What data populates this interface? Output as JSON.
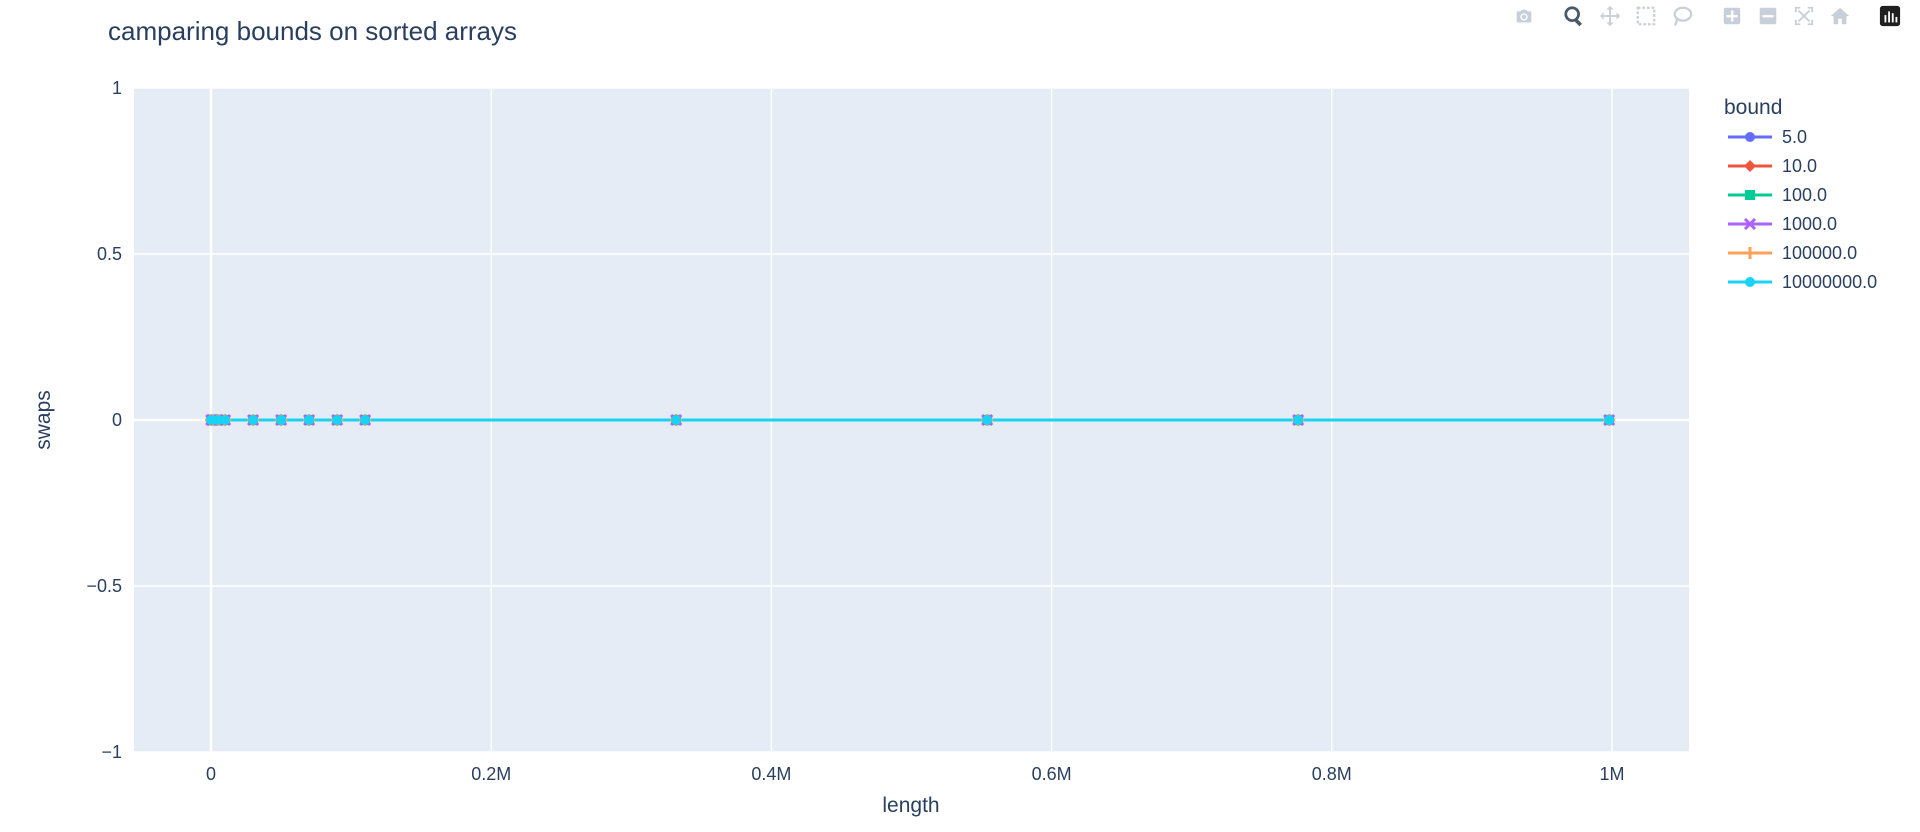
{
  "chart_data": {
    "type": "line",
    "title": "camparing bounds on sorted arrays",
    "xlabel": "length",
    "ylabel": "swaps",
    "xlim": [
      -55000,
      1055000
    ],
    "ylim": [
      -1,
      1
    ],
    "xticks": [
      0,
      200000,
      400000,
      600000,
      800000,
      1000000
    ],
    "xtick_labels": [
      "0",
      "0.2M",
      "0.4M",
      "0.6M",
      "0.8M",
      "1M"
    ],
    "yticks": [
      -1,
      -0.5,
      0,
      0.5,
      1
    ],
    "ytick_labels": [
      "−1",
      "−0.5",
      "0",
      "0.5",
      "1"
    ],
    "grid": true,
    "legend_title": "bound",
    "legend_position": "right",
    "x": [
      100,
      1000,
      5000,
      10000,
      30000,
      50000,
      70000,
      90000,
      110000,
      332000,
      554000,
      776000,
      998000
    ],
    "series": [
      {
        "name": "5.0",
        "color": "#636efa",
        "marker": "circle",
        "values": [
          0,
          0,
          0,
          0,
          0,
          0,
          0,
          0,
          0,
          0,
          0,
          0,
          0
        ]
      },
      {
        "name": "10.0",
        "color": "#EF553B",
        "marker": "diamond",
        "values": [
          0,
          0,
          0,
          0,
          0,
          0,
          0,
          0,
          0,
          0,
          0,
          0,
          0
        ]
      },
      {
        "name": "100.0",
        "color": "#00cc96",
        "marker": "square",
        "values": [
          0,
          0,
          0,
          0,
          0,
          0,
          0,
          0,
          0,
          0,
          0,
          0,
          0
        ]
      },
      {
        "name": "1000.0",
        "color": "#ab63fa",
        "marker": "x",
        "values": [
          0,
          0,
          0,
          0,
          0,
          0,
          0,
          0,
          0,
          0,
          0,
          0,
          0
        ]
      },
      {
        "name": "100000.0",
        "color": "#FFA15A",
        "marker": "cross",
        "values": [
          0,
          0,
          0,
          0,
          0,
          0,
          0,
          0,
          0,
          0,
          0,
          0,
          0
        ]
      },
      {
        "name": "10000000.0",
        "color": "#19d3f3",
        "marker": "circle",
        "values": [
          0,
          0,
          0,
          0,
          0,
          0,
          0,
          0,
          0,
          0,
          0,
          0,
          0
        ]
      }
    ]
  },
  "modebar": {
    "icons": [
      "camera-icon",
      "zoom-icon",
      "pan-icon",
      "box-select-icon",
      "lasso-icon",
      "zoom-in-icon",
      "zoom-out-icon",
      "autoscale-icon",
      "reset-axes-icon",
      "plotly-logo-icon"
    ]
  }
}
